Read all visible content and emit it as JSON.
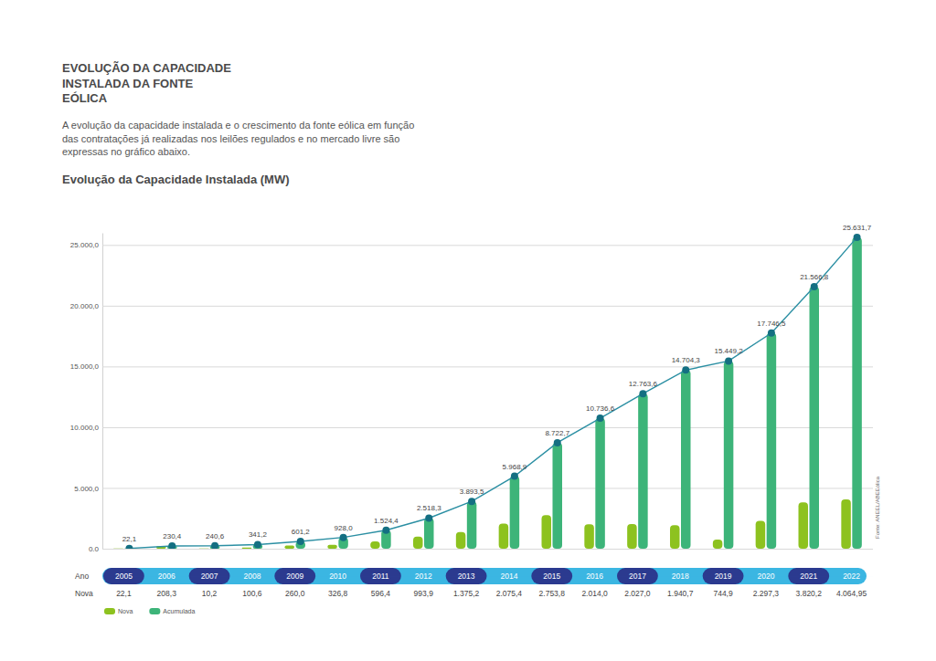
{
  "header": {
    "title_lines": [
      "EVOLUÇÃO DA CAPACIDADE",
      "INSTALADA DA FONTE",
      "EÓLICA"
    ],
    "description_lines": [
      "A evolução da capacidade instalada e o crescimento da fonte eólica em função",
      "das contratações já realizadas nos leilões regulados e no mercado livre são",
      "expressas no gráfico abaixo."
    ]
  },
  "chart_data": {
    "type": "bar",
    "title": "Evolução da Capacidade Instalada (MW)",
    "x_label": "Ano",
    "source": "Fonte: ANEEL/ABEEólica",
    "categories": [
      "2005",
      "2006",
      "2007",
      "2008",
      "2009",
      "2010",
      "2011",
      "2012",
      "2013",
      "2014",
      "2015",
      "2016",
      "2017",
      "2018",
      "2019",
      "2020",
      "2021",
      "2022"
    ],
    "series": [
      {
        "name": "Nova",
        "type": "bar",
        "color": "#8dc21f",
        "values": [
          22.1,
          208.3,
          10.2,
          100.6,
          260.0,
          326.8,
          596.4,
          993.9,
          1375.2,
          2075.4,
          2753.8,
          2014.0,
          2027.0,
          1940.7,
          744.9,
          2297.3,
          3820.2,
          4064.95
        ],
        "value_labels": [
          "22,1",
          "208,3",
          "10,2",
          "100,6",
          "260,0",
          "326,8",
          "596,4",
          "993,9",
          "1.375,2",
          "2.075,4",
          "2.753,8",
          "2.014,0",
          "2.027,0",
          "1.940,7",
          "744,9",
          "2.297,3",
          "3.820,2",
          "4.064,95"
        ]
      },
      {
        "name": "Acumulada",
        "type": "bar",
        "color": "#3db479",
        "marker": "circle",
        "line_style": "solid",
        "values": [
          22.1,
          230.4,
          240.6,
          341.2,
          601.2,
          928.0,
          1524.4,
          2518.3,
          3893.5,
          5968.9,
          8722.7,
          10736.6,
          12763.6,
          14704.3,
          15449.2,
          17746.5,
          21566.8,
          25631.7
        ],
        "value_labels": [
          "22,1",
          "230,4",
          "240,6",
          "341,2",
          "601,2",
          "928,0",
          "1.524,4",
          "2.518,3",
          "3.893,5",
          "5.968,9",
          "8.722,7",
          "10.736,6",
          "12.763,6",
          "14.704,3",
          "15.449,2",
          "17.746,5",
          "21.566,8",
          "25.631,7"
        ]
      }
    ],
    "ylim": [
      0,
      26000
    ],
    "yticks": [
      {
        "value": 0,
        "label": "0.0"
      },
      {
        "value": 5000,
        "label": "5.000,0"
      },
      {
        "value": 10000,
        "label": "10.000,0"
      },
      {
        "value": 15000,
        "label": "15.000,0"
      },
      {
        "value": 20000,
        "label": "20.000,0"
      },
      {
        "value": 25000,
        "label": "25.000,0"
      }
    ],
    "grid": true,
    "data_labels": true,
    "legend": "bottom-left"
  }
}
